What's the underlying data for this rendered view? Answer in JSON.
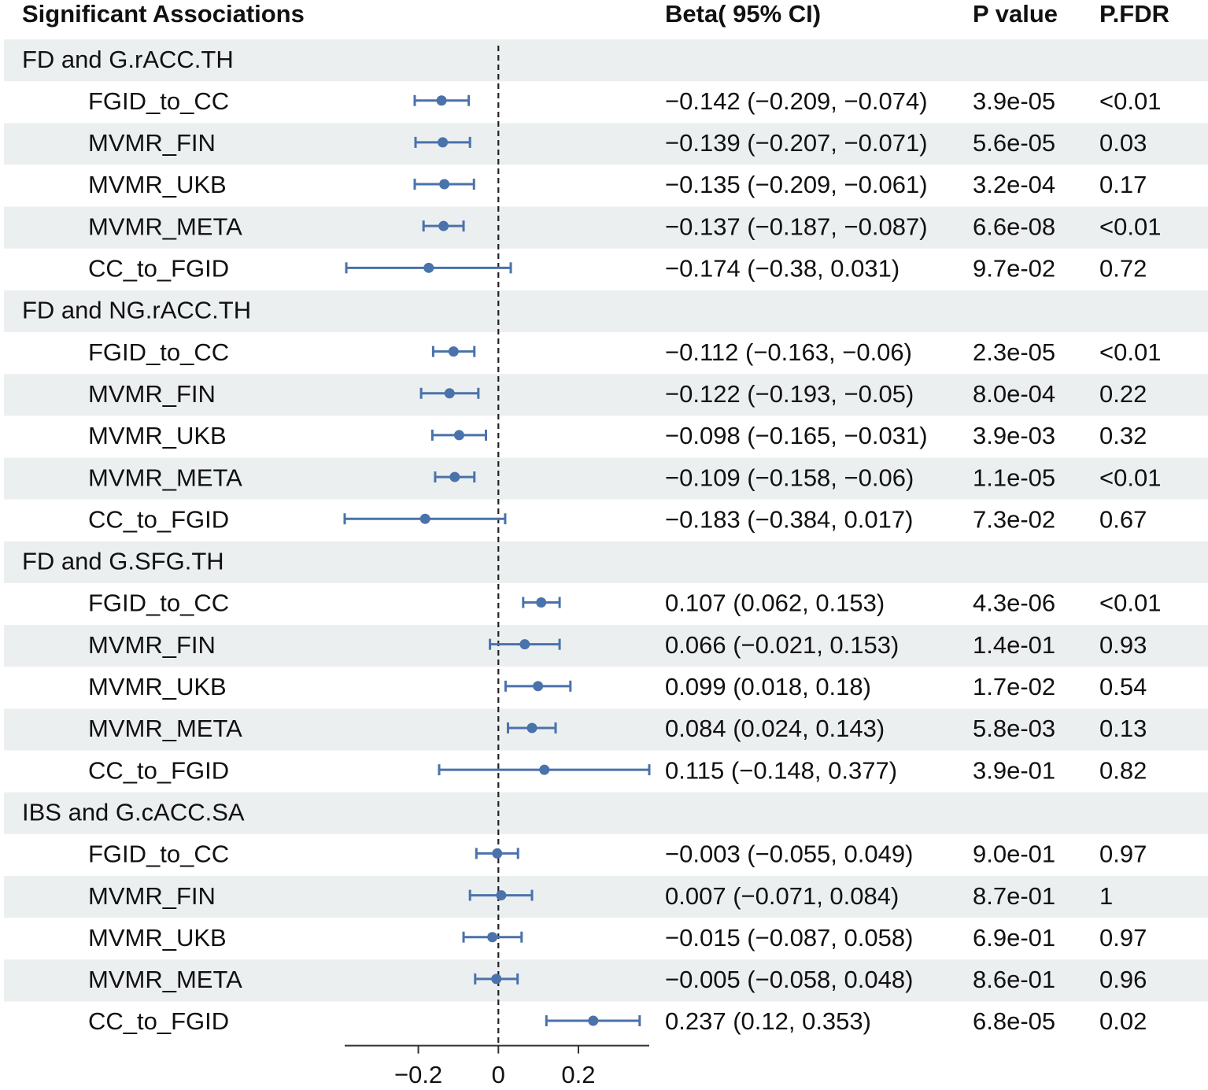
{
  "chart_data": {
    "type": "forest",
    "headers": {
      "label": "Significant Associations",
      "beta": "Beta( 95% CI)",
      "p": "P value",
      "fdr": "P.FDR"
    },
    "x_ticks": [
      {
        "value": -0.2,
        "label": "−0.2"
      },
      {
        "value": 0,
        "label": "0"
      },
      {
        "value": 0.2,
        "label": "0.2"
      }
    ],
    "xlim": [
      -0.384,
      0.377
    ],
    "reference_line": 0,
    "colors": {
      "point": "#4a72ab",
      "shade": "#eceff0",
      "reference": "#222222",
      "axis": "#333333"
    },
    "groups": [
      {
        "title": "FD and G.rACC.TH",
        "rows": [
          {
            "label": "FGID_to_CC",
            "beta": -0.142,
            "lo": -0.209,
            "hi": -0.074,
            "ci_text": "−0.142 (−0.209, −0.074)",
            "p": "3.9e-05",
            "fdr": "<0.01"
          },
          {
            "label": "MVMR_FIN",
            "beta": -0.139,
            "lo": -0.207,
            "hi": -0.071,
            "ci_text": "−0.139 (−0.207, −0.071)",
            "p": "5.6e-05",
            "fdr": "0.03"
          },
          {
            "label": "MVMR_UKB",
            "beta": -0.135,
            "lo": -0.209,
            "hi": -0.061,
            "ci_text": "−0.135 (−0.209, −0.061)",
            "p": "3.2e-04",
            "fdr": "0.17"
          },
          {
            "label": "MVMR_META",
            "beta": -0.137,
            "lo": -0.187,
            "hi": -0.087,
            "ci_text": "−0.137 (−0.187, −0.087)",
            "p": "6.6e-08",
            "fdr": "<0.01"
          },
          {
            "label": "CC_to_FGID",
            "beta": -0.174,
            "lo": -0.38,
            "hi": 0.031,
            "ci_text": "−0.174 (−0.38, 0.031)",
            "p": "9.7e-02",
            "fdr": "0.72"
          }
        ]
      },
      {
        "title": "FD and NG.rACC.TH",
        "rows": [
          {
            "label": "FGID_to_CC",
            "beta": -0.112,
            "lo": -0.163,
            "hi": -0.06,
            "ci_text": "−0.112 (−0.163, −0.06)",
            "p": "2.3e-05",
            "fdr": "<0.01"
          },
          {
            "label": "MVMR_FIN",
            "beta": -0.122,
            "lo": -0.193,
            "hi": -0.05,
            "ci_text": "−0.122 (−0.193, −0.05)",
            "p": "8.0e-04",
            "fdr": "0.22"
          },
          {
            "label": "MVMR_UKB",
            "beta": -0.098,
            "lo": -0.165,
            "hi": -0.031,
            "ci_text": "−0.098 (−0.165, −0.031)",
            "p": "3.9e-03",
            "fdr": "0.32"
          },
          {
            "label": "MVMR_META",
            "beta": -0.109,
            "lo": -0.158,
            "hi": -0.06,
            "ci_text": "−0.109 (−0.158, −0.06)",
            "p": "1.1e-05",
            "fdr": "<0.01"
          },
          {
            "label": "CC_to_FGID",
            "beta": -0.183,
            "lo": -0.384,
            "hi": 0.017,
            "ci_text": "−0.183 (−0.384, 0.017)",
            "p": "7.3e-02",
            "fdr": "0.67"
          }
        ]
      },
      {
        "title": "FD and G.SFG.TH",
        "rows": [
          {
            "label": "FGID_to_CC",
            "beta": 0.107,
            "lo": 0.062,
            "hi": 0.153,
            "ci_text": "0.107 (0.062, 0.153)",
            "p": "4.3e-06",
            "fdr": "<0.01"
          },
          {
            "label": "MVMR_FIN",
            "beta": 0.066,
            "lo": -0.021,
            "hi": 0.153,
            "ci_text": "0.066 (−0.021, 0.153)",
            "p": "1.4e-01",
            "fdr": "0.93"
          },
          {
            "label": "MVMR_UKB",
            "beta": 0.099,
            "lo": 0.018,
            "hi": 0.18,
            "ci_text": "0.099 (0.018, 0.18)",
            "p": "1.7e-02",
            "fdr": "0.54"
          },
          {
            "label": "MVMR_META",
            "beta": 0.084,
            "lo": 0.024,
            "hi": 0.143,
            "ci_text": "0.084 (0.024, 0.143)",
            "p": "5.8e-03",
            "fdr": "0.13"
          },
          {
            "label": "CC_to_FGID",
            "beta": 0.115,
            "lo": -0.148,
            "hi": 0.377,
            "ci_text": "0.115 (−0.148, 0.377)",
            "p": "3.9e-01",
            "fdr": "0.82"
          }
        ]
      },
      {
        "title": "IBS and G.cACC.SA",
        "rows": [
          {
            "label": "FGID_to_CC",
            "beta": -0.003,
            "lo": -0.055,
            "hi": 0.049,
            "ci_text": "−0.003 (−0.055, 0.049)",
            "p": "9.0e-01",
            "fdr": "0.97"
          },
          {
            "label": "MVMR_FIN",
            "beta": 0.007,
            "lo": -0.071,
            "hi": 0.084,
            "ci_text": "0.007 (−0.071, 0.084)",
            "p": "8.7e-01",
            "fdr": "1"
          },
          {
            "label": "MVMR_UKB",
            "beta": -0.015,
            "lo": -0.087,
            "hi": 0.058,
            "ci_text": "−0.015 (−0.087, 0.058)",
            "p": "6.9e-01",
            "fdr": "0.97"
          },
          {
            "label": "MVMR_META",
            "beta": -0.005,
            "lo": -0.058,
            "hi": 0.048,
            "ci_text": "−0.005 (−0.058, 0.048)",
            "p": "8.6e-01",
            "fdr": "0.96"
          },
          {
            "label": "CC_to_FGID",
            "beta": 0.237,
            "lo": 0.12,
            "hi": 0.353,
            "ci_text": "0.237 (0.12, 0.353)",
            "p": "6.8e-05",
            "fdr": "0.02"
          }
        ]
      }
    ]
  }
}
